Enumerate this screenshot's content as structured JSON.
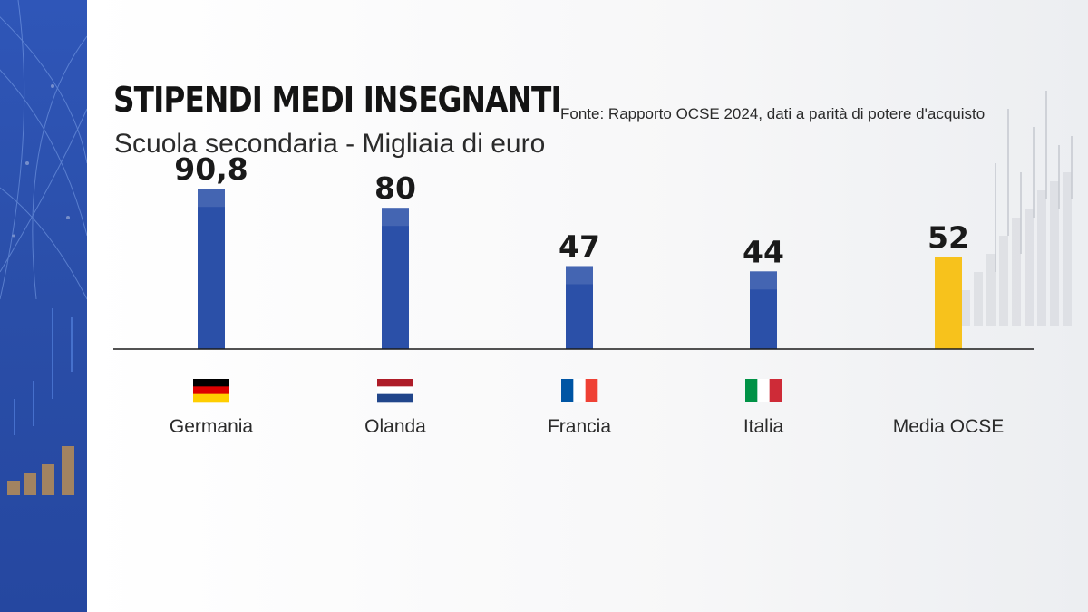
{
  "header": {
    "title": "STIPENDI MEDI INSEGNANTI",
    "source": "Fonte: Rapporto OCSE 2024, dati a parità di potere d'acquisto",
    "subtitle": "Scuola secondaria - Migliaia di euro"
  },
  "chart_data": {
    "type": "bar",
    "categories": [
      "Germania",
      "Olanda",
      "Francia",
      "Italia",
      "Media OCSE"
    ],
    "values": [
      90.8,
      80,
      47,
      44,
      52
    ],
    "value_labels": [
      "90,8",
      "80",
      "47",
      "44",
      "52"
    ],
    "flags": [
      "germany-flag",
      "netherlands-flag",
      "france-flag",
      "italy-flag",
      ""
    ],
    "ylim": [
      0,
      95
    ],
    "colors": {
      "bar": "#2b50a8",
      "highlight": "#f7c21c",
      "axis": "#1a1a1a"
    },
    "highlight_index": 4
  },
  "colors": {
    "left_band": "#2f56b8"
  }
}
